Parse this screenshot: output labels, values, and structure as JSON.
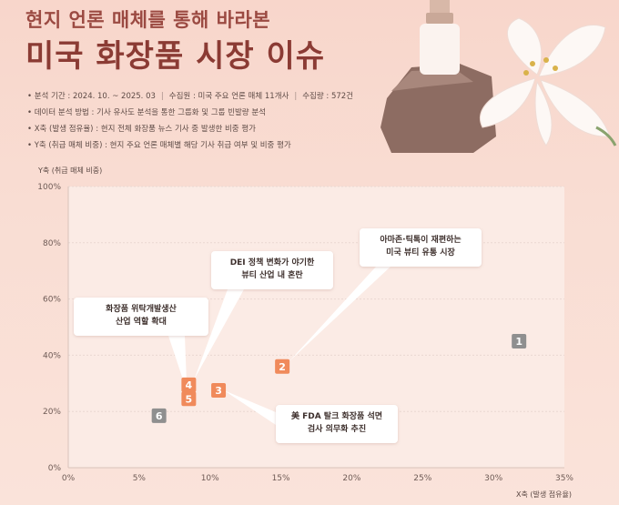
{
  "header": {
    "subtitle": "현지 언론 매체를 통해 바라본",
    "title": "미국 화장품 시장 이슈"
  },
  "info": {
    "period_label": "• 분석 기간 : 2024. 10. ~ 2025. 03",
    "source_label": "수집원 : 미국 주요 언론 매체 11개사",
    "count_label": "수집량 : 572건",
    "method": "• 데이터 분석 방법 : 기사 유사도 분석을 통한 그룹화 및 그룹 빈발량 분석",
    "x_def": "• X축 (발생 점유율) : 현지 전체 화장품 뉴스 기사 중 발생한 비중 평가",
    "y_def": "• Y축 (취급 매체 비중) : 현지 주요 언론 매체별 해당 기사 취급 여부 및 비중 평가"
  },
  "colors": {
    "orange": "#f08a5b",
    "gray": "#8f8f8f",
    "title": "#8b3b34",
    "grid": "#ead8d2"
  },
  "chart_data": {
    "type": "scatter",
    "xlabel": "X축 (발생 점유율)",
    "ylabel": "Y축 (취급 매체 비중)",
    "xlim": [
      0,
      35
    ],
    "ylim": [
      0,
      100
    ],
    "x_ticks": [
      "0%",
      "5%",
      "10%",
      "15%",
      "20%",
      "25%",
      "30%",
      "35%"
    ],
    "y_ticks": [
      "0%",
      "20%",
      "40%",
      "60%",
      "80%",
      "100%"
    ],
    "points": [
      {
        "label": "1",
        "x": 31.8,
        "y": 45,
        "color": "gray"
      },
      {
        "label": "2",
        "x": 15.1,
        "y": 36,
        "color": "orange"
      },
      {
        "label": "3",
        "x": 10.6,
        "y": 27.5,
        "color": "orange"
      },
      {
        "label": "4",
        "x": 8.5,
        "y": 29.5,
        "color": "orange"
      },
      {
        "label": "5",
        "x": 8.5,
        "y": 24.5,
        "color": "orange"
      },
      {
        "label": "6",
        "x": 6.4,
        "y": 18.5,
        "color": "gray"
      }
    ],
    "annotations": [
      {
        "point": "2",
        "lines": [
          "아마존·틱톡이 재편하는",
          "미국 뷰티 유통 시장"
        ]
      },
      {
        "point": "3",
        "lines": [
          "美 FDA 탈크 화장품 석면",
          "검사 의무화 추진"
        ]
      },
      {
        "point": "4",
        "lines": [
          "DEI 정책 변화가 야기한",
          "뷰티 산업 내 혼란"
        ]
      },
      {
        "point": "5",
        "lines": [
          "화장품 위탁개발생산",
          "산업 역할 확대"
        ]
      }
    ]
  }
}
